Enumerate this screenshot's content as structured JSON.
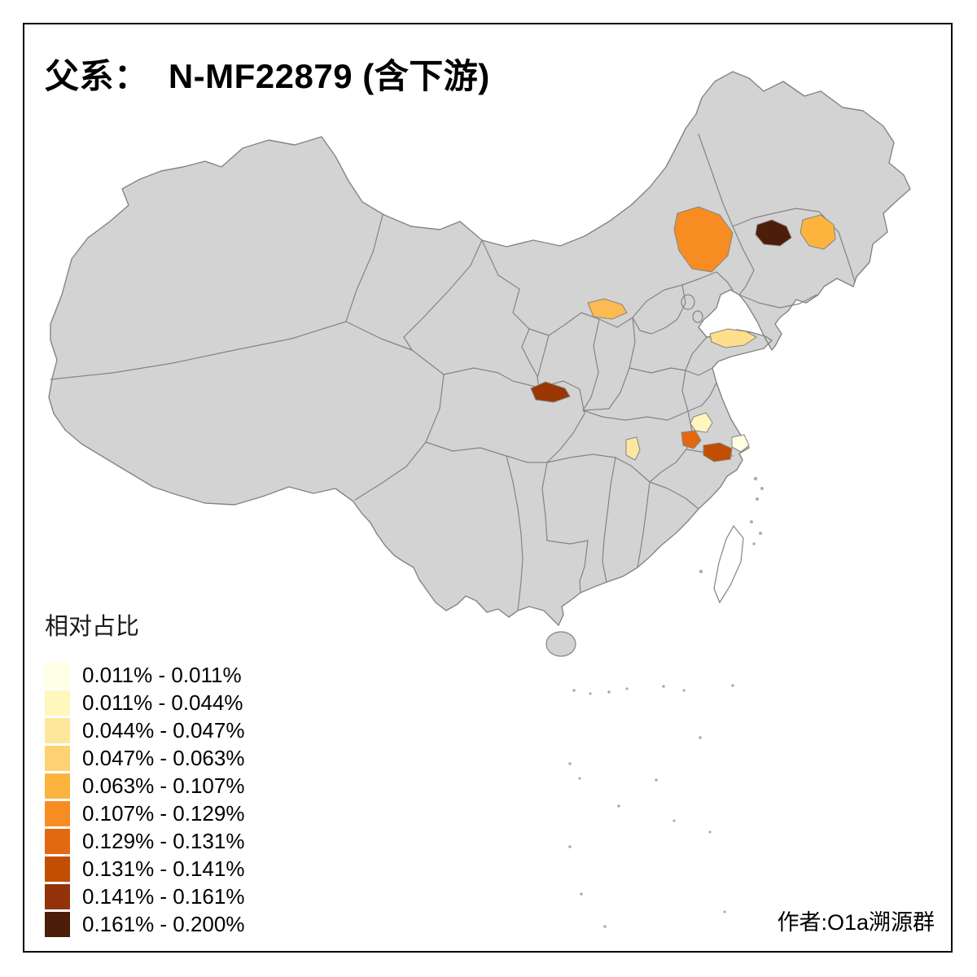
{
  "title": "父系：  N-MF22879 (含下游)",
  "credit": "作者:O1a溯源群",
  "legend": {
    "title": "相对占比",
    "items": [
      {
        "color": "#FFFFE5",
        "label": "0.011% - 0.011%"
      },
      {
        "color": "#FFF7BC",
        "label": "0.011% - 0.044%"
      },
      {
        "color": "#FEE79A",
        "label": "0.044% - 0.047%"
      },
      {
        "color": "#FED272",
        "label": "0.047% - 0.063%"
      },
      {
        "color": "#FDB43E",
        "label": "0.063% - 0.107%"
      },
      {
        "color": "#F78D22",
        "label": "0.107% - 0.129%"
      },
      {
        "color": "#E3680F",
        "label": "0.129% - 0.131%"
      },
      {
        "color": "#C24E03",
        "label": "0.131% - 0.141%"
      },
      {
        "color": "#94330B",
        "label": "0.141% - 0.161%"
      },
      {
        "color": "#4C1D08",
        "label": "0.161% - 0.200%"
      }
    ]
  },
  "map": {
    "land_color": "#D3D3D3",
    "boundary_color": "#848484",
    "island_dot_color": "#ACACAC",
    "taiwan_fill": "#FFFFFF",
    "regions": [
      {
        "name": "inner-mongolia-east",
        "color": "#F78D22"
      },
      {
        "name": "jilin-west",
        "color": "#4C1D08"
      },
      {
        "name": "jilin-east",
        "color": "#FDB43E"
      },
      {
        "name": "shanxi-north",
        "color": "#FDB952"
      },
      {
        "name": "shandong-peninsula",
        "color": "#FEDF8B"
      },
      {
        "name": "gansu-southeast",
        "color": "#9A3603"
      },
      {
        "name": "jiangsu-west-pale",
        "color": "#FFF6BE"
      },
      {
        "name": "anhui-east",
        "color": "#E3680F"
      },
      {
        "name": "jiangsu-south",
        "color": "#C24E03"
      },
      {
        "name": "shanghai-area",
        "color": "#FFFFE3"
      },
      {
        "name": "hubei-east",
        "color": "#FBE8A0"
      }
    ]
  }
}
